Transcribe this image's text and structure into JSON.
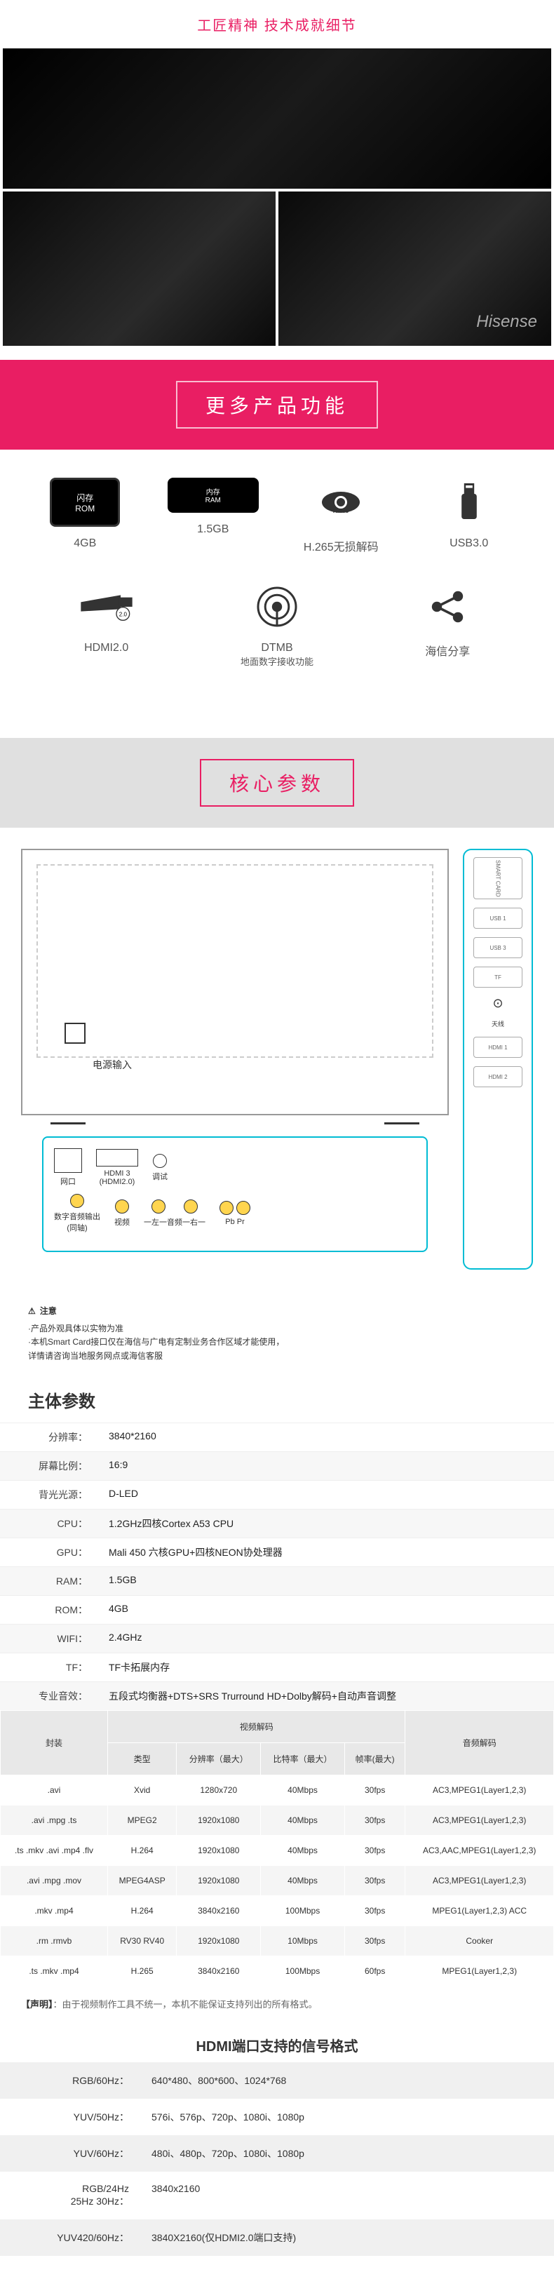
{
  "tagline": "工匠精神 技术成就细节",
  "brand_logo": "Hisense",
  "sections": {
    "features_header": "更多产品功能",
    "specs_header": "核心参数"
  },
  "features": {
    "row1": [
      {
        "icon_text": "闪存\nROM",
        "label": "4GB",
        "style": "rom"
      },
      {
        "icon_text": "内存\nRAM",
        "label": "1.5GB",
        "style": "ram"
      },
      {
        "overlay": "H.265",
        "label": "H.265无损解码",
        "style": "eye"
      },
      {
        "label": "USB3.0",
        "style": "usb"
      }
    ],
    "row2": [
      {
        "overlay": "2.0",
        "label": "HDMI2.0",
        "style": "hdmi"
      },
      {
        "label": "DTMB",
        "sublabel": "地面数字接收功能",
        "style": "antenna"
      },
      {
        "label": "海信分享",
        "style": "share"
      }
    ]
  },
  "port_labels": {
    "power_input": "电源输入",
    "lan": "网口",
    "hdmi3": "HDMI 3\n(HDMI2.0)",
    "debug": "调试",
    "digital_audio": "数字音频输出\n(同轴)",
    "video": "视频",
    "audio_l": "一左一音频一右一",
    "pb": "Pb",
    "pr": "Pr",
    "smart_card": "SMART CARD",
    "usb1": "USB 1",
    "usb2": "USB 3",
    "tf": "TF",
    "antenna": "天线",
    "hdmi1": "HDMI 1",
    "hdmi2": "HDMI 2"
  },
  "notice": {
    "title": "注意",
    "lines": [
      "·产品外观具体以实物为准",
      "·本机Smart Card接口仅在海信与广电有定制业务合作区域才能使用，",
      "详情请咨询当地服务网点或海信客服"
    ]
  },
  "spec_main_title": "主体参数",
  "specs": [
    {
      "label": "分辨率：",
      "value": "3840*2160"
    },
    {
      "label": "屏幕比例：",
      "value": "16:9"
    },
    {
      "label": "背光光源：",
      "value": "D-LED"
    },
    {
      "label": "CPU：",
      "value": "1.2GHz四核Cortex A53 CPU"
    },
    {
      "label": "GPU：",
      "value": "Mali 450 六核GPU+四核NEON协处理器"
    },
    {
      "label": "RAM：",
      "value": "1.5GB"
    },
    {
      "label": "ROM：",
      "value": "4GB"
    },
    {
      "label": "WIFI：",
      "value": "2.4GHz"
    },
    {
      "label": "TF：",
      "value": "TF卡拓展内存"
    },
    {
      "label": "专业音效：",
      "value": "五段式均衡器+DTS+SRS Trurround HD+Dolby解码+自动声音调整"
    }
  ],
  "codec": {
    "headers": {
      "container": "封装",
      "video_decode": "视频解码",
      "audio_decode": "音频解码",
      "type": "类型",
      "res": "分辨率（最大）",
      "bitrate": "比特率（最大）",
      "fps": "帧率(最大)"
    },
    "rows": [
      {
        "c": ".avi",
        "t": "Xvid",
        "r": "1280x720",
        "b": "40Mbps",
        "f": "30fps",
        "a": "AC3,MPEG1(Layer1,2,3)"
      },
      {
        "c": ".avi .mpg .ts",
        "t": "MPEG2",
        "r": "1920x1080",
        "b": "40Mbps",
        "f": "30fps",
        "a": "AC3,MPEG1(Layer1,2,3)"
      },
      {
        "c": ".ts .mkv .avi .mp4 .flv",
        "t": "H.264",
        "r": "1920x1080",
        "b": "40Mbps",
        "f": "30fps",
        "a": "AC3,AAC,MPEG1(Layer1,2,3)"
      },
      {
        "c": ".avi .mpg .mov",
        "t": "MPEG4ASP",
        "r": "1920x1080",
        "b": "40Mbps",
        "f": "30fps",
        "a": "AC3,MPEG1(Layer1,2,3)"
      },
      {
        "c": ".mkv .mp4",
        "t": "H.264",
        "r": "3840x2160",
        "b": "100Mbps",
        "f": "30fps",
        "a": "MPEG1(Layer1,2,3) ACC"
      },
      {
        "c": ".rm .rmvb",
        "t": "RV30 RV40",
        "r": "1920x1080",
        "b": "10Mbps",
        "f": "30fps",
        "a": "Cooker"
      },
      {
        "c": ".ts .mkv .mp4",
        "t": "H.265",
        "r": "3840x2160",
        "b": "100Mbps",
        "f": "60fps",
        "a": "MPEG1(Layer1,2,3)"
      }
    ]
  },
  "disclaimer": {
    "tag": "【声明】",
    "text": "：由于视频制作工具不统一，本机不能保证支持列出的所有格式。"
  },
  "hdmi": {
    "title": "HDMI端口支持的信号格式",
    "rows": [
      {
        "label": "RGB/60Hz：",
        "value": "640*480、800*600、1024*768"
      },
      {
        "label": "YUV/50Hz：",
        "value": "576i、576p、720p、1080i、1080p"
      },
      {
        "label": "YUV/60Hz：",
        "value": "480i、480p、720p、1080i、1080p"
      },
      {
        "label": "RGB/24Hz\n25Hz 30Hz：",
        "value": "3840x2160"
      },
      {
        "label": "YUV420/60Hz：",
        "value": "3840X2160(仅HDMI2.0端口支持)"
      }
    ]
  },
  "colors": {
    "pink": "#e91e63",
    "cyan": "#00bcd4",
    "grey_bg": "#e0e0e0"
  }
}
